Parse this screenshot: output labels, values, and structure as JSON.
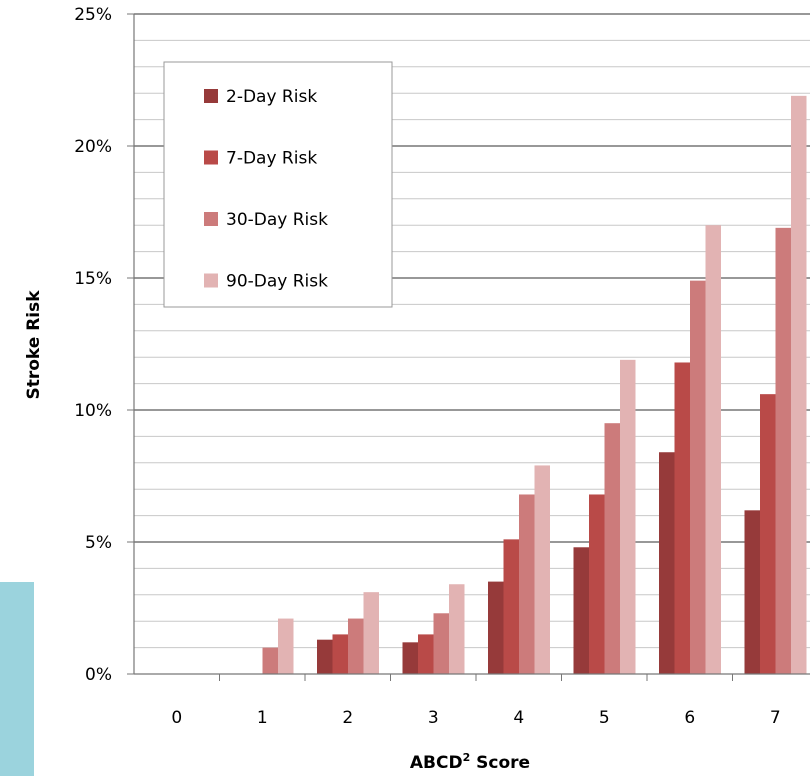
{
  "chart_data": {
    "type": "bar",
    "title": "",
    "xlabel": "ABCD",
    "xlabel_superscript": "2",
    "xlabel_suffix": " Score",
    "ylabel": "Stroke Risk",
    "ylim": [
      0,
      25
    ],
    "yticks": [
      0,
      5,
      10,
      15,
      20,
      25
    ],
    "ytick_labels": [
      "0%",
      "5%",
      "10%",
      "15%",
      "20%",
      "25%"
    ],
    "categories": [
      "0",
      "1",
      "2",
      "3",
      "4",
      "5",
      "6",
      "7"
    ],
    "series": [
      {
        "name": "2-Day Risk",
        "color": "#963a3a",
        "values": [
          0,
          0,
          1.3,
          1.2,
          3.5,
          4.8,
          8.4,
          6.2
        ]
      },
      {
        "name": "7-Day Risk",
        "color": "#b94a48",
        "values": [
          0,
          0,
          1.5,
          1.5,
          5.1,
          6.8,
          11.8,
          10.6
        ]
      },
      {
        "name": "30-Day Risk",
        "color": "#cc7b7b",
        "values": [
          0,
          1.0,
          2.1,
          2.3,
          6.8,
          9.5,
          14.9,
          16.9
        ]
      },
      {
        "name": "90-Day Risk",
        "color": "#e2b3b3",
        "values": [
          0,
          2.1,
          3.1,
          3.4,
          7.9,
          11.9,
          17.0,
          21.9
        ]
      }
    ],
    "grid": true,
    "legend_position": "top-left",
    "accent_color": "#9bd3dd"
  }
}
